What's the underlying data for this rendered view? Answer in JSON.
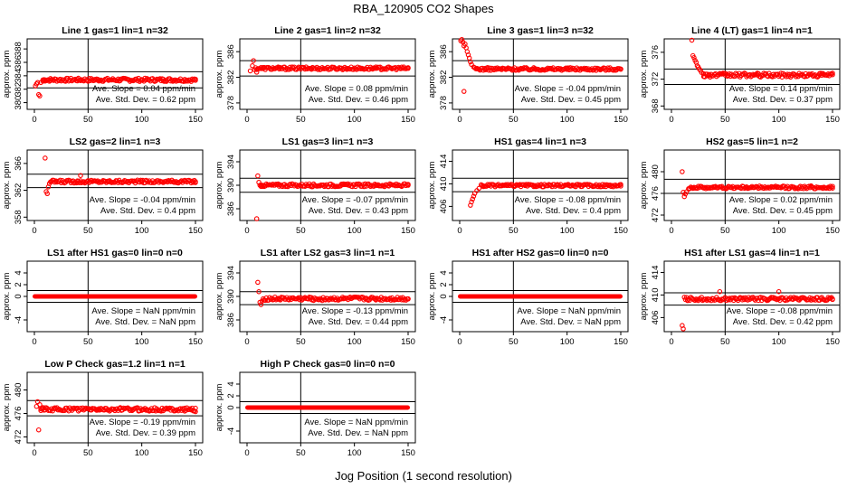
{
  "figure": {
    "title": "RBA_120905  CO2 Shapes",
    "xlabel": "Jog Position (1 second resolution)"
  },
  "colors": {
    "marker": "#ff0000",
    "axis": "#000000"
  },
  "chart_data": [
    {
      "type": "scatter",
      "title": "Line 1 gas=1 lin=1 n=32",
      "ylabel": "approx. ppm",
      "xlim": [
        0,
        150
      ],
      "ylim": [
        379,
        389.5
      ],
      "yticks": [
        "380",
        "382",
        "384",
        "386",
        "388"
      ],
      "xticks": [
        "0",
        "50",
        "100",
        "150"
      ],
      "hlines": [
        384.6,
        382.2
      ],
      "vline": 50,
      "points": [
        [
          1,
          382.5
        ],
        [
          2,
          382.8
        ],
        [
          3,
          383.0
        ],
        [
          4,
          381.2
        ],
        [
          5,
          381.0
        ],
        [
          6,
          383.0
        ],
        [
          8,
          383.2
        ],
        [
          10,
          383.4
        ],
        [
          15,
          383.3
        ],
        [
          20,
          383.5
        ],
        [
          30,
          383.4
        ],
        [
          40,
          383.5
        ],
        [
          60,
          383.4
        ],
        [
          80,
          383.5
        ],
        [
          100,
          383.4
        ],
        [
          120,
          383.5
        ],
        [
          140,
          383.4
        ],
        [
          150,
          383.5
        ]
      ],
      "base": 383.4,
      "noise": 0.25,
      "xfrom": 8,
      "slope_text": "Ave. Slope = 0.04 ppm/min",
      "sd_text": "Ave. Std. Dev. = 0.62 ppm"
    },
    {
      "type": "scatter",
      "title": "Line 2 gas=1 lin=2 n=32",
      "ylabel": "approx. ppm",
      "xlim": [
        0,
        150
      ],
      "ylim": [
        377,
        388
      ],
      "yticks": [
        "378",
        "382",
        "386"
      ],
      "xticks": [
        "0",
        "50",
        "100",
        "150"
      ],
      "hlines": [
        384.6,
        382.2
      ],
      "vline": 50,
      "points": [
        [
          3,
          383.0
        ],
        [
          5,
          383.8
        ],
        [
          6,
          384.6
        ],
        [
          7,
          383.2
        ],
        [
          9,
          382.8
        ],
        [
          15,
          383.4
        ],
        [
          30,
          383.3
        ],
        [
          60,
          383.4
        ],
        [
          90,
          383.3
        ],
        [
          120,
          383.4
        ],
        [
          150,
          383.4
        ]
      ],
      "base": 383.4,
      "noise": 0.22,
      "xfrom": 8,
      "slope_text": "Ave. Slope = 0.08 ppm/min",
      "sd_text": "Ave. Std. Dev. = 0.46 ppm"
    },
    {
      "type": "scatter",
      "title": "Line 3 gas=1 lin=3 n=32",
      "ylabel": "approx. ppm",
      "xlim": [
        0,
        150
      ],
      "ylim": [
        377,
        388
      ],
      "yticks": [
        "378",
        "382",
        "386"
      ],
      "xticks": [
        "0",
        "50",
        "100",
        "150"
      ],
      "hlines": [
        384.6,
        382.2
      ],
      "vline": 50,
      "points": [
        [
          1,
          387.7
        ],
        [
          2,
          387.9
        ],
        [
          3,
          387.5
        ],
        [
          4,
          386.9
        ],
        [
          5,
          387.2
        ],
        [
          6,
          386.6
        ],
        [
          7,
          386.0
        ],
        [
          8,
          385.5
        ],
        [
          9,
          385.0
        ],
        [
          10,
          384.4
        ],
        [
          11,
          384.0
        ],
        [
          4,
          379.8
        ],
        [
          13,
          383.6
        ],
        [
          16,
          383.4
        ],
        [
          25,
          383.3
        ],
        [
          40,
          383.4
        ],
        [
          70,
          383.3
        ],
        [
          100,
          383.4
        ],
        [
          130,
          383.3
        ],
        [
          150,
          383.3
        ]
      ],
      "base": 383.3,
      "noise": 0.22,
      "xfrom": 14,
      "slope_text": "Ave. Slope = -0.04 ppm/min",
      "sd_text": "Ave. Std. Dev. = 0.45 ppm"
    },
    {
      "type": "scatter",
      "title": "Line 4 (LT) gas=1 lin=4 n=1",
      "ylabel": "approx. ppm",
      "xlim": [
        0,
        150
      ],
      "ylim": [
        367.5,
        378
      ],
      "yticks": [
        "368",
        "372",
        "376"
      ],
      "xticks": [
        "0",
        "50",
        "100",
        "150"
      ],
      "hlines": [
        373.5,
        371.2
      ],
      "vline": 50,
      "points": [
        [
          19,
          377.8
        ],
        [
          20,
          375.5
        ],
        [
          21,
          375.2
        ],
        [
          22,
          374.8
        ],
        [
          23,
          374.5
        ],
        [
          24,
          374.0
        ],
        [
          25,
          373.8
        ],
        [
          26,
          373.5
        ],
        [
          27,
          373.3
        ],
        [
          28,
          373.0
        ],
        [
          30,
          372.8
        ],
        [
          35,
          372.7
        ],
        [
          50,
          372.6
        ],
        [
          80,
          372.6
        ],
        [
          110,
          372.7
        ],
        [
          140,
          372.8
        ],
        [
          150,
          372.9
        ]
      ],
      "base": 372.6,
      "noise": 0.3,
      "xfrom": 30,
      "slope_text": "Ave. Slope = 0.14 ppm/min",
      "sd_text": "Ave. Std. Dev. = 0.37 ppm"
    },
    {
      "type": "scatter",
      "title": "LS2 gas=2 lin=1 n=3",
      "ylabel": "approx. ppm",
      "xlim": [
        0,
        150
      ],
      "ylim": [
        357.5,
        368
      ],
      "yticks": [
        "358",
        "362",
        "366"
      ],
      "xticks": [
        "0",
        "50",
        "100",
        "150"
      ],
      "hlines": [
        364.4,
        362.4
      ],
      "vline": 50,
      "points": [
        [
          10,
          366.8
        ],
        [
          11,
          361.8
        ],
        [
          12,
          361.5
        ],
        [
          13,
          362.5
        ],
        [
          14,
          363.0
        ],
        [
          16,
          363.3
        ],
        [
          20,
          363.4
        ],
        [
          40,
          363.4
        ],
        [
          43,
          364.2
        ],
        [
          70,
          363.3
        ],
        [
          100,
          363.4
        ],
        [
          130,
          363.3
        ],
        [
          150,
          363.3
        ]
      ],
      "base": 363.3,
      "noise": 0.22,
      "xfrom": 15,
      "slope_text": "Ave. Slope = -0.04 ppm/min",
      "sd_text": "Ave. Std. Dev. = 0.4 ppm"
    },
    {
      "type": "scatter",
      "title": "LS1 gas=3 lin=1 n=3",
      "ylabel": "approx. ppm",
      "xlim": [
        0,
        150
      ],
      "ylim": [
        384,
        396
      ],
      "yticks": [
        "386",
        "390",
        "394"
      ],
      "xticks": [
        "0",
        "50",
        "100",
        "150"
      ],
      "hlines": [
        391.2,
        388.8
      ],
      "vline": 50,
      "points": [
        [
          10,
          391.6
        ],
        [
          11,
          390.5
        ],
        [
          12,
          390.0
        ],
        [
          13,
          389.8
        ],
        [
          9,
          384.3
        ],
        [
          15,
          390.0
        ],
        [
          30,
          390.1
        ],
        [
          60,
          390.0
        ],
        [
          90,
          390.1
        ],
        [
          120,
          390.0
        ],
        [
          150,
          390.0
        ]
      ],
      "base": 390.0,
      "noise": 0.25,
      "xfrom": 13,
      "slope_text": "Ave. Slope = -0.07 ppm/min",
      "sd_text": "Ave. Std. Dev. = 0.43 ppm"
    },
    {
      "type": "scatter",
      "title": "HS1 gas=4 lin=1 n=3",
      "ylabel": "approx. ppm",
      "xlim": [
        0,
        150
      ],
      "ylim": [
        403.5,
        416
      ],
      "yticks": [
        "406",
        "410",
        "414"
      ],
      "xticks": [
        "0",
        "50",
        "100",
        "150"
      ],
      "hlines": [
        411.0,
        408.6
      ],
      "vline": 50,
      "points": [
        [
          10,
          406.2
        ],
        [
          11,
          406.8
        ],
        [
          12,
          407.3
        ],
        [
          13,
          407.8
        ],
        [
          14,
          408.3
        ],
        [
          16,
          408.8
        ],
        [
          18,
          409.2
        ],
        [
          22,
          409.5
        ],
        [
          40,
          409.8
        ],
        [
          70,
          409.7
        ],
        [
          100,
          409.8
        ],
        [
          130,
          409.7
        ],
        [
          150,
          409.6
        ]
      ],
      "base": 409.7,
      "noise": 0.22,
      "xfrom": 20,
      "slope_text": "Ave. Slope = -0.08 ppm/min",
      "sd_text": "Ave. Std. Dev. = 0.4 ppm"
    },
    {
      "type": "scatter",
      "title": "HS2 gas=5 lin=1 n=2",
      "ylabel": "approx. ppm",
      "xlim": [
        0,
        150
      ],
      "ylim": [
        471,
        484
      ],
      "yticks": [
        "472",
        "476",
        "480"
      ],
      "xticks": [
        "0",
        "50",
        "100",
        "150"
      ],
      "hlines": [
        478.6,
        476.0
      ],
      "vline": 50,
      "points": [
        [
          10,
          480.0
        ],
        [
          11,
          476.2
        ],
        [
          12,
          475.4
        ],
        [
          13,
          475.9
        ],
        [
          14,
          476.3
        ],
        [
          16,
          476.8
        ],
        [
          20,
          477.0
        ],
        [
          40,
          477.1
        ],
        [
          70,
          477.2
        ],
        [
          100,
          477.1
        ],
        [
          130,
          477.4
        ],
        [
          150,
          477.3
        ]
      ],
      "base": 477.1,
      "noise": 0.25,
      "xfrom": 16,
      "slope_text": "Ave. Slope = 0.02 ppm/min",
      "sd_text": "Ave. Std. Dev. = 0.45 ppm"
    },
    {
      "type": "scatter",
      "title": "LS1 after HS1 gas=0 lin=0 n=0",
      "ylabel": "approx. ppm",
      "xlim": [
        0,
        150
      ],
      "ylim": [
        -6,
        6
      ],
      "yticks": [
        "-4",
        "0",
        "2",
        "4"
      ],
      "xticks": [
        "0",
        "50",
        "100",
        "150"
      ],
      "hlines": [
        1,
        -1
      ],
      "vline": 50,
      "points": [],
      "base": 0,
      "noise": 0,
      "xfrom": 0,
      "slope_text": "Ave. Slope = NaN ppm/min",
      "sd_text": "Ave. Std. Dev. = NaN ppm"
    },
    {
      "type": "scatter",
      "title": "LS1 after LS2 gas=3 lin=1 n=1",
      "ylabel": "approx. ppm",
      "xlim": [
        0,
        150
      ],
      "ylim": [
        384,
        396
      ],
      "yticks": [
        "386",
        "390",
        "394"
      ],
      "xticks": [
        "0",
        "50",
        "100",
        "150"
      ],
      "hlines": [
        390.8,
        388.6
      ],
      "vline": 50,
      "points": [
        [
          10,
          392.4
        ],
        [
          11,
          390.8
        ],
        [
          12,
          389.0
        ],
        [
          13,
          388.6
        ],
        [
          14,
          389.2
        ],
        [
          16,
          389.4
        ],
        [
          30,
          389.6
        ],
        [
          60,
          389.8
        ],
        [
          90,
          389.6
        ],
        [
          120,
          389.5
        ],
        [
          150,
          389.6
        ]
      ],
      "base": 389.6,
      "noise": 0.3,
      "xfrom": 15,
      "slope_text": "Ave. Slope = -0.13 ppm/min",
      "sd_text": "Ave. Std. Dev. = 0.44 ppm"
    },
    {
      "type": "scatter",
      "title": "HS1 after HS2 gas=0 lin=0 n=0",
      "ylabel": "approx. ppm",
      "xlim": [
        0,
        150
      ],
      "ylim": [
        -6,
        6
      ],
      "yticks": [
        "-4",
        "0",
        "2",
        "4"
      ],
      "xticks": [
        "0",
        "50",
        "100",
        "150"
      ],
      "hlines": [
        1,
        -1
      ],
      "vline": 50,
      "points": [],
      "base": 0,
      "noise": 0,
      "xfrom": 0,
      "slope_text": "Ave. Slope = NaN ppm/min",
      "sd_text": "Ave. Std. Dev. = NaN ppm"
    },
    {
      "type": "scatter",
      "title": "HS1 after LS1 gas=4 lin=1 n=1",
      "ylabel": "approx. ppm",
      "xlim": [
        0,
        150
      ],
      "ylim": [
        403.5,
        416
      ],
      "yticks": [
        "406",
        "410",
        "414"
      ],
      "xticks": [
        "0",
        "50",
        "100",
        "150"
      ],
      "hlines": [
        410.4,
        408.2
      ],
      "vline": 50,
      "points": [
        [
          10,
          404.6
        ],
        [
          11,
          404.0
        ],
        [
          12,
          409.6
        ],
        [
          13,
          409.2
        ],
        [
          15,
          409.0
        ],
        [
          30,
          409.2
        ],
        [
          45,
          410.6
        ],
        [
          60,
          409.3
        ],
        [
          90,
          409.2
        ],
        [
          100,
          410.6
        ],
        [
          120,
          409.4
        ],
        [
          150,
          409.2
        ]
      ],
      "base": 409.3,
      "noise": 0.3,
      "xfrom": 14,
      "slope_text": "Ave. Slope = -0.08 ppm/min",
      "sd_text": "Ave. Std. Dev. = 0.42 ppm"
    },
    {
      "type": "scatter",
      "title": "Low P Check gas=1.2 lin=1 n=1",
      "ylabel": "approx. ppm",
      "xlim": [
        0,
        150
      ],
      "ylim": [
        471,
        483
      ],
      "yticks": [
        "472",
        "476",
        "480"
      ],
      "xticks": [
        "0",
        "50",
        "100",
        "150"
      ],
      "hlines": [
        478.2,
        475.6
      ],
      "vline": 50,
      "points": [
        [
          2,
          477.2
        ],
        [
          3,
          478.0
        ],
        [
          4,
          473.2
        ],
        [
          5,
          477.5
        ],
        [
          6,
          476.8
        ],
        [
          8,
          477.0
        ],
        [
          10,
          476.6
        ],
        [
          20,
          476.8
        ],
        [
          40,
          476.9
        ],
        [
          60,
          476.8
        ],
        [
          80,
          476.9
        ],
        [
          100,
          476.6
        ],
        [
          120,
          476.5
        ],
        [
          140,
          476.4
        ],
        [
          150,
          476.3
        ]
      ],
      "base": 476.7,
      "noise": 0.3,
      "xfrom": 6,
      "slope_text": "Ave. Slope = -0.19 ppm/min",
      "sd_text": "Ave. Std. Dev. = 0.39 ppm"
    },
    {
      "type": "scatter",
      "title": "High P Check gas=0 lin=0 n=0",
      "ylabel": "approx. ppm",
      "xlim": [
        0,
        150
      ],
      "ylim": [
        -6,
        6
      ],
      "yticks": [
        "-4",
        "0",
        "2",
        "4"
      ],
      "xticks": [
        "0",
        "50",
        "100",
        "150"
      ],
      "hlines": [
        1,
        -1
      ],
      "vline": 50,
      "points": [],
      "base": 0,
      "noise": 0,
      "xfrom": 0,
      "slope_text": "Ave. Slope = NaN ppm/min",
      "sd_text": "Ave. Std. Dev. = NaN ppm"
    }
  ]
}
